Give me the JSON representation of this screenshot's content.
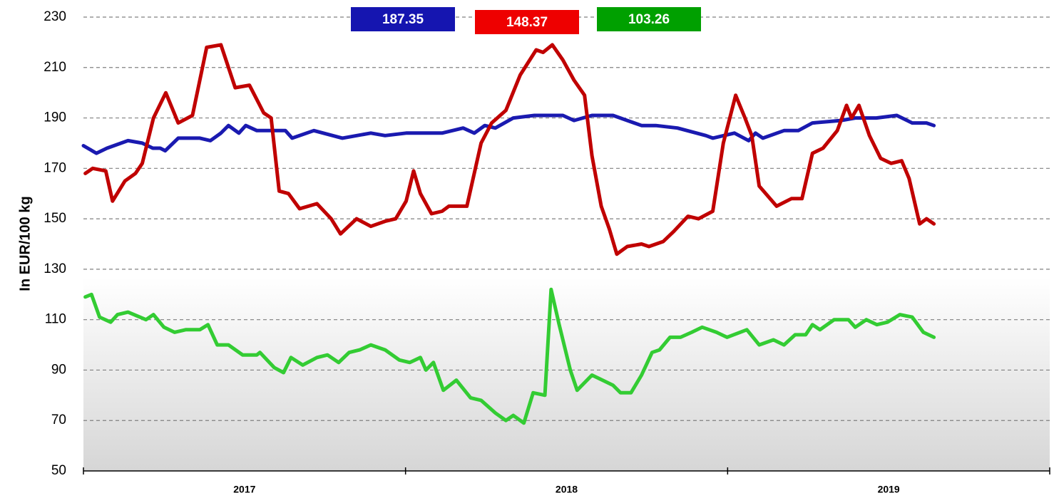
{
  "chart_data": {
    "type": "line",
    "ylabel": "In EUR/100 kg",
    "ylim": [
      50,
      230
    ],
    "yticks": [
      50,
      70,
      90,
      110,
      130,
      150,
      170,
      190,
      210,
      230
    ],
    "grid": true,
    "xlim": [
      0,
      156
    ],
    "xticks": [
      0,
      52,
      104,
      156
    ],
    "categories": [
      "2017",
      "2018",
      "2019"
    ],
    "series": [
      {
        "color": "#1a1ab0",
        "badge_color": "#1515b0",
        "badge": 187.35,
        "x": [
          0,
          2.1,
          3.8,
          7.2,
          9.5,
          11.2,
          12.4,
          13.2,
          15.3,
          18.8,
          20.5,
          22.2,
          23.4,
          25.1,
          26.2,
          28,
          32.6,
          33.7,
          37.2,
          41.8,
          46.4,
          48.7,
          52.1,
          57.9,
          61.3,
          63.1,
          64.8,
          66.5,
          69.4,
          72.8,
          77.4,
          79.2,
          82.1,
          85.5,
          87.8,
          90.1,
          92.4,
          95.9,
          100.5,
          101.6,
          105.1,
          107.4,
          108.5,
          109.7,
          113.1,
          115.4,
          117.7,
          122.3,
          124.6,
          128,
          131.3,
          133.8,
          136.1,
          137.3
        ],
        "values": [
          179,
          176,
          178,
          181,
          180,
          178,
          178,
          177,
          182,
          182,
          181,
          184,
          187,
          184,
          187,
          185,
          185,
          182,
          185,
          182,
          184,
          183,
          184,
          184,
          186,
          184,
          187,
          186,
          190,
          191,
          191,
          189,
          191,
          191,
          189,
          187,
          187,
          186,
          183,
          182,
          184,
          181,
          184,
          182,
          185,
          185,
          188,
          189,
          190,
          190,
          191,
          188,
          188,
          187
        ]
      },
      {
        "color": "#c00000",
        "badge_color": "#ee0000",
        "badge": 148.37,
        "x": [
          0.3,
          1.5,
          3.6,
          4.7,
          6.7,
          8.4,
          9.5,
          11.3,
          13.3,
          15.3,
          17.6,
          19.9,
          22.2,
          24.5,
          26.8,
          29.1,
          30.3,
          31.6,
          33.1,
          34.9,
          37.7,
          40.0,
          41.5,
          44.1,
          46.4,
          48.7,
          50.4,
          52.1,
          53.3,
          54.4,
          56.2,
          57.9,
          59.0,
          61.9,
          64.2,
          65.9,
          68.2,
          70.5,
          73.1,
          74.2,
          75.7,
          77.4,
          79.2,
          80.9,
          82.1,
          83.6,
          84.9,
          86.1,
          87.8,
          90.1,
          91.3,
          93.6,
          95.3,
          97.6,
          99.3,
          101.6,
          103.3,
          105.3,
          106.8,
          107.9,
          109.1,
          111.9,
          114.3,
          116.0,
          117.7,
          119.4,
          121.7,
          123.2,
          124.0,
          125.2,
          126.9,
          128.7,
          130.4,
          132.1,
          133.3,
          135.0,
          136.1,
          137.3
        ],
        "values": [
          168,
          170,
          169,
          157,
          165,
          168,
          172,
          190,
          200,
          188,
          191,
          218,
          219,
          202,
          203,
          192,
          190,
          161,
          160,
          154,
          156,
          150,
          144,
          150,
          147,
          149,
          150,
          157,
          169,
          160,
          152,
          153,
          155,
          155,
          180,
          188,
          193,
          207,
          217,
          216,
          219,
          213,
          205,
          199,
          175,
          155,
          146,
          136,
          139,
          140,
          139,
          141,
          145,
          151,
          150,
          153,
          180,
          199,
          190,
          183,
          163,
          155,
          158,
          158,
          176,
          178,
          185,
          195,
          190,
          195,
          183,
          174,
          172,
          173,
          166,
          148,
          150,
          148
        ]
      },
      {
        "color": "#33cc33",
        "badge_color": "#00a000",
        "badge": 103.26,
        "x": [
          0.3,
          1.3,
          2.6,
          4.4,
          5.5,
          7.2,
          10.1,
          11.3,
          13.0,
          14.7,
          16.5,
          18.8,
          20.1,
          21.6,
          23.4,
          25.7,
          28.0,
          28.5,
          30.8,
          32.3,
          33.5,
          35.4,
          37.7,
          39.4,
          41.2,
          42.9,
          44.6,
          46.4,
          48.7,
          51.0,
          52.7,
          54.4,
          55.3,
          56.5,
          58.1,
          60.2,
          62.5,
          64.2,
          66.5,
          68.2,
          69.4,
          71.1,
          72.6,
          74.5,
          75.5,
          76.8,
          78.6,
          79.7,
          82.1,
          83.8,
          85.5,
          86.7,
          88.4,
          90.1,
          91.8,
          93.0,
          94.7,
          96.4,
          98.2,
          99.9,
          102.2,
          103.9,
          107.1,
          109.1,
          111.4,
          113.1,
          114.9,
          116.6,
          117.7,
          118.9,
          121.2,
          123.5,
          124.6,
          126.4,
          128.1,
          129.8,
          131.8,
          133.8,
          135.6,
          137.3
        ],
        "values": [
          119,
          120,
          111,
          109,
          112,
          113,
          110,
          112,
          107,
          105,
          106,
          106,
          108,
          100,
          100,
          96,
          96,
          97,
          91,
          89,
          95,
          92,
          95,
          96,
          93,
          97,
          98,
          100,
          98,
          94,
          93,
          95,
          90,
          93,
          82,
          86,
          79,
          78,
          73,
          70,
          72,
          69,
          81,
          80,
          122,
          108,
          90,
          82,
          88,
          86,
          84,
          81,
          81,
          88,
          97,
          98,
          103,
          103,
          105,
          107,
          105,
          103,
          106,
          100,
          102,
          100,
          104,
          104,
          108,
          106,
          110,
          110,
          107,
          110,
          108,
          109,
          112,
          111,
          105,
          103
        ]
      }
    ]
  }
}
